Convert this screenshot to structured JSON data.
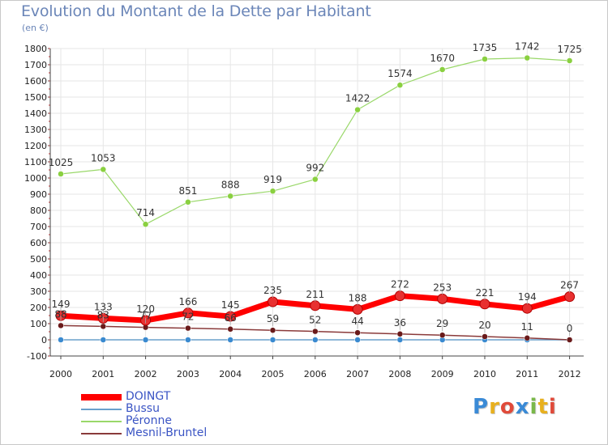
{
  "page": {
    "title": "Evolution du Montant de la Dette par Habitant",
    "unit": "(en €)",
    "logo_text": "Proxiti",
    "logo_colors": [
      "#3a8ad6",
      "#e8b01e",
      "#e04a3a",
      "#3a8ad6",
      "#7ab84a",
      "#e8b01e",
      "#e04a3a"
    ]
  },
  "chart_data": {
    "type": "line",
    "title": "Evolution du Montant de la Dette par Habitant",
    "subtitle": "(en €)",
    "xlabel": "",
    "ylabel": "",
    "x": [
      "2000",
      "2001",
      "2002",
      "2003",
      "2004",
      "2005",
      "2006",
      "2007",
      "2008",
      "2009",
      "2010",
      "2011",
      "2012"
    ],
    "ylim": [
      -100,
      1800
    ],
    "yticks": [
      -100,
      0,
      100,
      200,
      300,
      400,
      500,
      600,
      700,
      800,
      900,
      1000,
      1100,
      1200,
      1300,
      1400,
      1500,
      1600,
      1700,
      1800
    ],
    "grid": true,
    "legend_position": "bottom-left",
    "series": [
      {
        "name": "DOINGT",
        "color": "#ff0000",
        "marker_color": "#e83030",
        "values": [
          149,
          133,
          120,
          166,
          145,
          235,
          211,
          188,
          272,
          253,
          221,
          194,
          267
        ],
        "labels": [
          "149",
          "133",
          "120",
          "166",
          "145",
          "235",
          "211",
          "188",
          "272",
          "253",
          "221",
          "194",
          "267"
        ]
      },
      {
        "name": "Bussu",
        "color": "#6aa0cc",
        "marker_color": "#3a8ad0",
        "values": [
          0,
          0,
          0,
          0,
          0,
          0,
          0,
          0,
          0,
          0,
          0,
          0,
          0
        ],
        "labels": []
      },
      {
        "name": "Péronne",
        "color": "#9ad86a",
        "marker_color": "#8ad040",
        "values": [
          1025,
          1053,
          714,
          851,
          888,
          919,
          992,
          1422,
          1574,
          1670,
          1735,
          1742,
          1725
        ],
        "labels": [
          "1025",
          "1053",
          "714",
          "851",
          "888",
          "919",
          "992",
          "1422",
          "1574",
          "1670",
          "1735",
          "1742",
          "1725"
        ]
      },
      {
        "name": "Mesnil-Bruntel",
        "color": "#8a3a3a",
        "marker_color": "#6a1a1a",
        "values": [
          88,
          83,
          77,
          72,
          66,
          59,
          52,
          44,
          36,
          29,
          20,
          11,
          0
        ],
        "labels": [
          "88",
          "83",
          "77",
          "72",
          "66",
          "59",
          "52",
          "44",
          "36",
          "29",
          "20",
          "11",
          "0"
        ]
      }
    ]
  }
}
